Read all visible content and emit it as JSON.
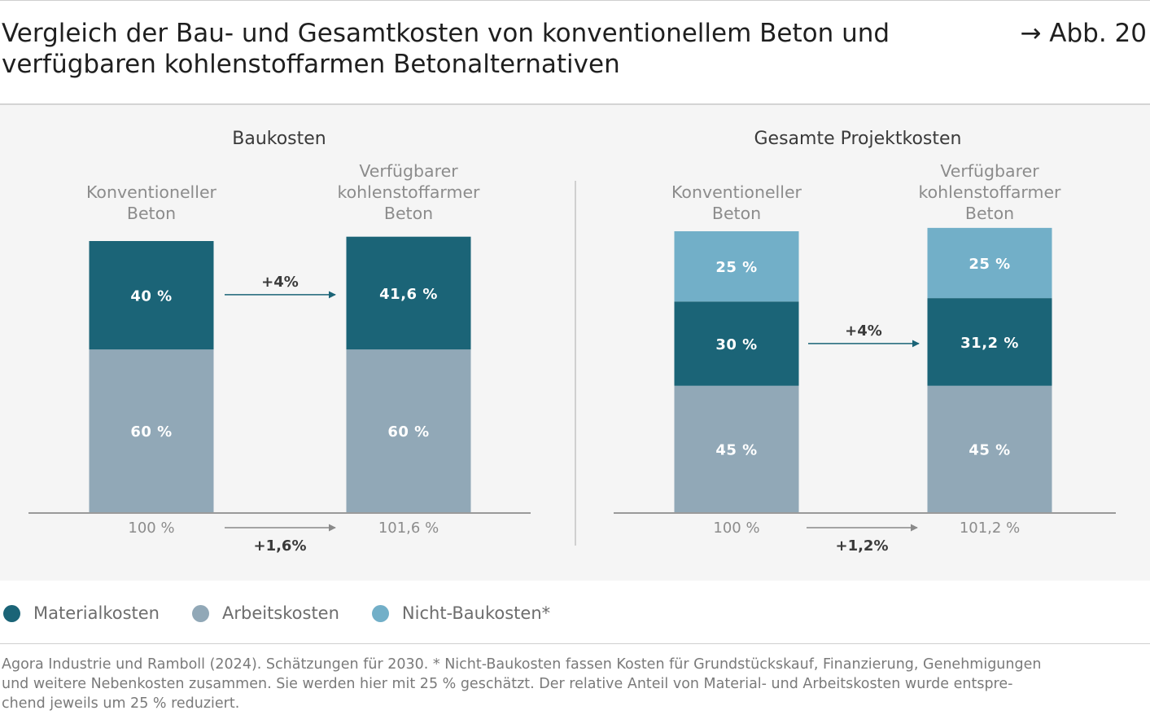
{
  "header": {
    "title_line1": "Vergleich der Bau- und Gesamtkosten von konventionellem Beton und",
    "title_line2": "verfügbaren kohlenstoffarmen Betonalternativen",
    "figure_ref": "→ Abb. 20"
  },
  "colors": {
    "materialkosten": "#1b6477",
    "arbeitskosten": "#91a8b7",
    "nicht_baukosten": "#72afc8",
    "arrow_dark": "#1b6477",
    "arrow_grey": "#8a8a8a",
    "panel_background": "#f5f5f5"
  },
  "chart_data": [
    {
      "type": "stacked-bar",
      "title": "Baukosten",
      "categories": [
        "Konventioneller Beton",
        "Verfügbarer kohlenstoffarmer Beton"
      ],
      "category_label_lines": [
        [
          "Konventioneller",
          "Beton"
        ],
        [
          "Verfügbarer",
          "kohlenstoffarmer",
          "Beton"
        ]
      ],
      "series": [
        {
          "name": "Arbeitskosten",
          "values": [
            60,
            60
          ],
          "labels": [
            "60 %",
            "60 %"
          ]
        },
        {
          "name": "Materialkosten",
          "values": [
            40,
            41.6
          ],
          "labels": [
            "40 %",
            "41,6 %"
          ]
        }
      ],
      "totals": [
        100,
        101.6
      ],
      "total_labels": [
        "100 %",
        "101,6 %"
      ],
      "change_label": "+4%",
      "change_series": "Materialkosten",
      "total_change_label": "+1,6%"
    },
    {
      "type": "stacked-bar",
      "title": "Gesamte Projektkosten",
      "categories": [
        "Konventioneller Beton",
        "Verfügbarer kohlenstoffarmer Beton"
      ],
      "category_label_lines": [
        [
          "Konventioneller",
          "Beton"
        ],
        [
          "Verfügbarer",
          "kohlenstoffarmer",
          "Beton"
        ]
      ],
      "series": [
        {
          "name": "Arbeitskosten",
          "values": [
            45,
            45
          ],
          "labels": [
            "45 %",
            "45 %"
          ]
        },
        {
          "name": "Materialkosten",
          "values": [
            30,
            31.2
          ],
          "labels": [
            "30 %",
            "31,2 %"
          ]
        },
        {
          "name": "Nicht-Baukosten",
          "values": [
            25,
            25
          ],
          "labels": [
            "25 %",
            "25 %"
          ]
        }
      ],
      "totals": [
        100,
        101.2
      ],
      "total_labels": [
        "100 %",
        "101,2 %"
      ],
      "change_label": "+4%",
      "change_series": "Materialkosten",
      "total_change_label": "+1,2%"
    }
  ],
  "legend": [
    {
      "name": "Materialkosten",
      "color": "#1b6477"
    },
    {
      "name": "Arbeitskosten",
      "color": "#91a8b7"
    },
    {
      "name": "Nicht-Baukosten*",
      "color": "#72afc8"
    }
  ],
  "source": {
    "line1": "Agora Industrie und Ramboll (2024). Schätzungen für 2030. * Nicht-Baukosten fassen Kosten für Grundstückskauf, Finanzierung, Genehmigungen",
    "line2": "und weitere Nebenkosten zusammen. Sie werden hier mit 25 % geschätzt. Der relative Anteil von Material- und Arbeitskosten wurde entspre-",
    "line3": "chend jeweils um 25 % reduziert."
  }
}
